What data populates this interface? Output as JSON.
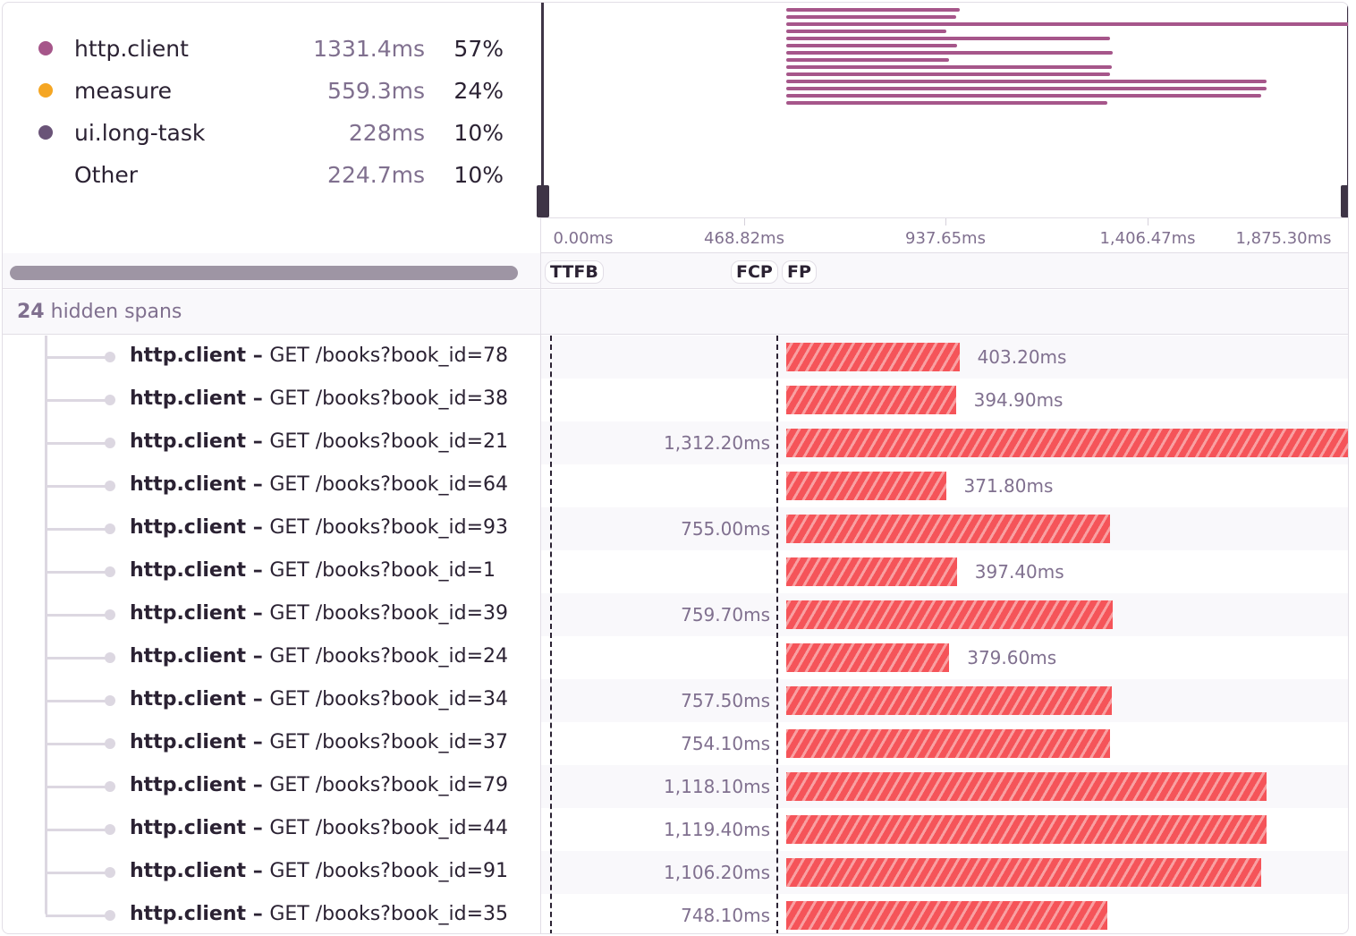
{
  "legend": [
    {
      "name": "http.client",
      "duration": "1331.4ms",
      "percent": "57%",
      "color": "#a6568a"
    },
    {
      "name": "measure",
      "duration": "559.3ms",
      "percent": "24%",
      "color": "#f5a623"
    },
    {
      "name": "ui.long-task",
      "duration": "228ms",
      "percent": "10%",
      "color": "#6a5478"
    },
    {
      "name": "Other",
      "duration": "224.7ms",
      "percent": "10%",
      "color": ""
    }
  ],
  "axis": {
    "ticks": [
      "0.00ms",
      "468.82ms",
      "937.65ms",
      "1,406.47ms",
      "1,875.30ms"
    ]
  },
  "markers": [
    "TTFB",
    "FCP",
    "FP"
  ],
  "hidden_spans": {
    "count": "24",
    "label": "hidden spans"
  },
  "span_color": "#f55459",
  "spans": [
    {
      "op": "http.client",
      "desc": "GET /books?book_id=78",
      "duration": "403.20ms",
      "ms": 403.2
    },
    {
      "op": "http.client",
      "desc": "GET /books?book_id=38",
      "duration": "394.90ms",
      "ms": 394.9
    },
    {
      "op": "http.client",
      "desc": "GET /books?book_id=21",
      "duration": "1,312.20ms",
      "ms": 1312.2
    },
    {
      "op": "http.client",
      "desc": "GET /books?book_id=64",
      "duration": "371.80ms",
      "ms": 371.8
    },
    {
      "op": "http.client",
      "desc": "GET /books?book_id=93",
      "duration": "755.00ms",
      "ms": 755.0
    },
    {
      "op": "http.client",
      "desc": "GET /books?book_id=1",
      "duration": "397.40ms",
      "ms": 397.4
    },
    {
      "op": "http.client",
      "desc": "GET /books?book_id=39",
      "duration": "759.70ms",
      "ms": 759.7
    },
    {
      "op": "http.client",
      "desc": "GET /books?book_id=24",
      "duration": "379.60ms",
      "ms": 379.6
    },
    {
      "op": "http.client",
      "desc": "GET /books?book_id=34",
      "duration": "757.50ms",
      "ms": 757.5
    },
    {
      "op": "http.client",
      "desc": "GET /books?book_id=37",
      "duration": "754.10ms",
      "ms": 754.1
    },
    {
      "op": "http.client",
      "desc": "GET /books?book_id=79",
      "duration": "1,118.10ms",
      "ms": 1118.1
    },
    {
      "op": "http.client",
      "desc": "GET /books?book_id=44",
      "duration": "1,119.40ms",
      "ms": 1119.4
    },
    {
      "op": "http.client",
      "desc": "GET /books?book_id=91",
      "duration": "1,106.20ms",
      "ms": 1106.2
    },
    {
      "op": "http.client",
      "desc": "GET /books?book_id=35",
      "duration": "748.10ms",
      "ms": 748.1
    }
  ]
}
